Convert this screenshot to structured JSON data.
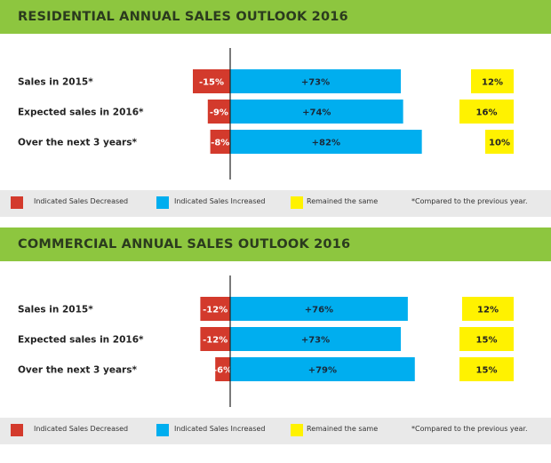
{
  "colors": {
    "decreased": "#d33a2c",
    "increased": "#00aeef",
    "same": "#fff200",
    "header_bg": "#8dc63f",
    "legend_bg": "#e9e9e9"
  },
  "legend": {
    "decreased": "Indicated Sales Decreased",
    "increased": "Indicated Sales Increased",
    "same": "Remained the same",
    "note": "*Compared to the previous year."
  },
  "chart_data": [
    {
      "type": "bar",
      "title": "RESIDENTIAL ANNUAL SALES OUTLOOK 2016",
      "categories": [
        "Sales in 2015*",
        "Expected sales in 2016*",
        "Over the next 3 years*"
      ],
      "series": [
        {
          "name": "Indicated Sales Decreased",
          "values": [
            -15,
            -9,
            -8
          ],
          "labels": [
            "-15%",
            "-9%",
            "-8%"
          ]
        },
        {
          "name": "Indicated Sales Increased",
          "values": [
            73,
            74,
            82
          ],
          "labels": [
            "+73%",
            "+74%",
            "+82%"
          ]
        },
        {
          "name": "Remained the same",
          "values": [
            12,
            16,
            10
          ],
          "labels": [
            "12%",
            "16%",
            "10%"
          ]
        }
      ]
    },
    {
      "type": "bar",
      "title": "COMMERCIAL ANNUAL SALES OUTLOOK 2016",
      "categories": [
        "Sales in 2015*",
        "Expected sales in 2016*",
        "Over the next 3 years*"
      ],
      "series": [
        {
          "name": "Indicated Sales Decreased",
          "values": [
            -12,
            -12,
            -6
          ],
          "labels": [
            "-12%",
            "-12%",
            "-6%"
          ]
        },
        {
          "name": "Indicated Sales Increased",
          "values": [
            76,
            73,
            79
          ],
          "labels": [
            "+76%",
            "+73%",
            "+79%"
          ]
        },
        {
          "name": "Remained the same",
          "values": [
            12,
            15,
            15
          ],
          "labels": [
            "12%",
            "15%",
            "15%"
          ]
        }
      ]
    }
  ]
}
